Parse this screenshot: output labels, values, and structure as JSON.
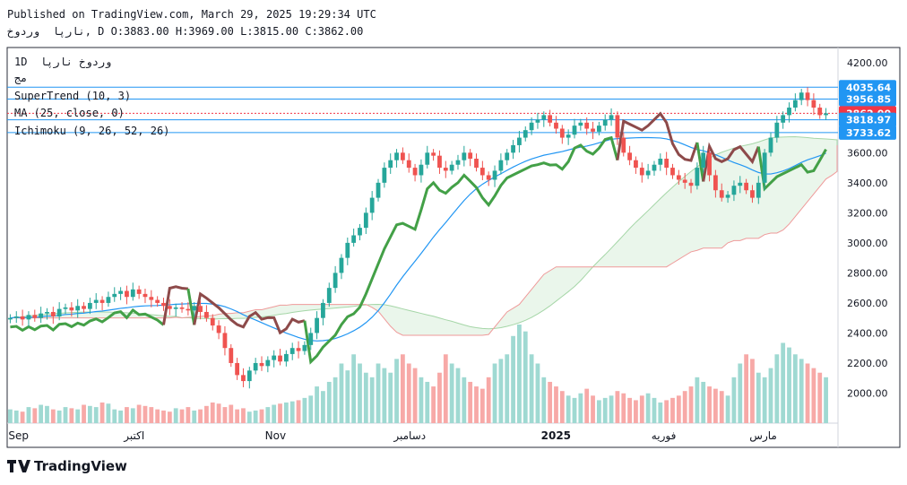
{
  "header": {
    "published": "Published on TradingView.com, March 29, 2025 19:29:34 UTC",
    "ohlc_line": "نارپا  وردوخ, D O:3883.00 H:3969.00 L:3815.00 C:3862.00"
  },
  "legend": {
    "symbol": "1D  وردوخ نارپا",
    "sub": "مج",
    "supertrend": "SuperTrend (10, 3)",
    "ma": "MA (25, close, 0)",
    "ichimoku": "Ichimoku (9, 26, 52, 26)"
  },
  "logo_text": "TradingView",
  "colors": {
    "up": "#26a69a",
    "down": "#ef5350",
    "ma": "#2196f3",
    "st_up": "#43a047",
    "st_down": "#8d4a4a",
    "cloud_bull": "#e8f5e9",
    "cloud_bear": "#fde4e4",
    "badge_blue": "#2196f3",
    "badge_red": "#f23645"
  },
  "chart_data": {
    "type": "candlestick",
    "ylim": [
      1800,
      4300
    ],
    "y_ticks": [
      "4200.00",
      "4000.00",
      "3800.00",
      "3600.00",
      "3400.00",
      "3200.00",
      "3000.00",
      "2800.00",
      "2600.00",
      "2400.00",
      "2200.00",
      "2000.00"
    ],
    "y_tick_values": [
      4200,
      4000,
      3800,
      3600,
      3400,
      3200,
      3000,
      2800,
      2600,
      2400,
      2200,
      2000
    ],
    "x_labels": [
      {
        "label": "Sep",
        "i": 0
      },
      {
        "label": "اکتبر",
        "i": 20
      },
      {
        "label": "Nov",
        "i": 43
      },
      {
        "label": "دسامبر",
        "i": 64
      },
      {
        "label": "2025",
        "i": 88
      },
      {
        "label": "فوریه",
        "i": 106
      },
      {
        "label": "مارس",
        "i": 122
      }
    ],
    "price_badges": [
      {
        "label": "4035.64",
        "value": 4035.64,
        "color": "#2196f3"
      },
      {
        "label": "3956.85",
        "value": 3956.85,
        "color": "#2196f3"
      },
      {
        "label": "3862.00",
        "value": 3862.0,
        "color": "#f23645"
      },
      {
        "label": "3818.97",
        "value": 3818.97,
        "color": "#2196f3"
      },
      {
        "label": "3733.62",
        "value": 3733.62,
        "color": "#2196f3"
      }
    ],
    "close": [
      2500,
      2510,
      2490,
      2520,
      2500,
      2530,
      2540,
      2510,
      2560,
      2570,
      2550,
      2580,
      2560,
      2600,
      2620,
      2600,
      2640,
      2660,
      2680,
      2640,
      2690,
      2660,
      2640,
      2620,
      2600,
      2580,
      2560,
      2570,
      2560,
      2550,
      2580,
      2540,
      2500,
      2450,
      2400,
      2300,
      2200,
      2120,
      2080,
      2150,
      2200,
      2180,
      2220,
      2250,
      2210,
      2260,
      2300,
      2280,
      2320,
      2400,
      2500,
      2600,
      2700,
      2800,
      2900,
      3000,
      3050,
      3100,
      3200,
      3300,
      3400,
      3500,
      3550,
      3600,
      3550,
      3500,
      3450,
      3520,
      3600,
      3580,
      3500,
      3480,
      3520,
      3550,
      3600,
      3560,
      3500,
      3450,
      3420,
      3480,
      3550,
      3600,
      3650,
      3700,
      3750,
      3800,
      3820,
      3850,
      3800,
      3760,
      3700,
      3720,
      3780,
      3800,
      3760,
      3740,
      3780,
      3820,
      3850,
      3700,
      3600,
      3550,
      3500,
      3450,
      3480,
      3520,
      3560,
      3500,
      3450,
      3420,
      3400,
      3380,
      3500,
      3600,
      3450,
      3350,
      3300,
      3320,
      3380,
      3400,
      3350,
      3300,
      3400,
      3600,
      3700,
      3800,
      3850,
      3900,
      3950,
      4000,
      3950,
      3900,
      3850,
      3862
    ],
    "volume": [
      60,
      55,
      50,
      70,
      65,
      80,
      75,
      60,
      55,
      70,
      65,
      60,
      80,
      75,
      70,
      90,
      85,
      60,
      55,
      70,
      65,
      80,
      75,
      70,
      60,
      55,
      50,
      65,
      60,
      70,
      55,
      60,
      75,
      90,
      85,
      70,
      80,
      60,
      65,
      50,
      55,
      60,
      70,
      80,
      85,
      90,
      95,
      100,
      110,
      120,
      160,
      140,
      180,
      200,
      260,
      230,
      300,
      260,
      220,
      200,
      260,
      240,
      220,
      280,
      300,
      260,
      240,
      200,
      180,
      160,
      220,
      300,
      260,
      240,
      200,
      180,
      160,
      150,
      200,
      260,
      280,
      300,
      380,
      430,
      400,
      300,
      260,
      200,
      180,
      160,
      140,
      120,
      110,
      130,
      150,
      120,
      100,
      110,
      120,
      140,
      130,
      110,
      100,
      120,
      130,
      110,
      90,
      100,
      110,
      120,
      140,
      160,
      200,
      180,
      160,
      150,
      140,
      120,
      200,
      260,
      300,
      280,
      220,
      200,
      240,
      300,
      350,
      330,
      300,
      280,
      260,
      240,
      220,
      200
    ]
  }
}
